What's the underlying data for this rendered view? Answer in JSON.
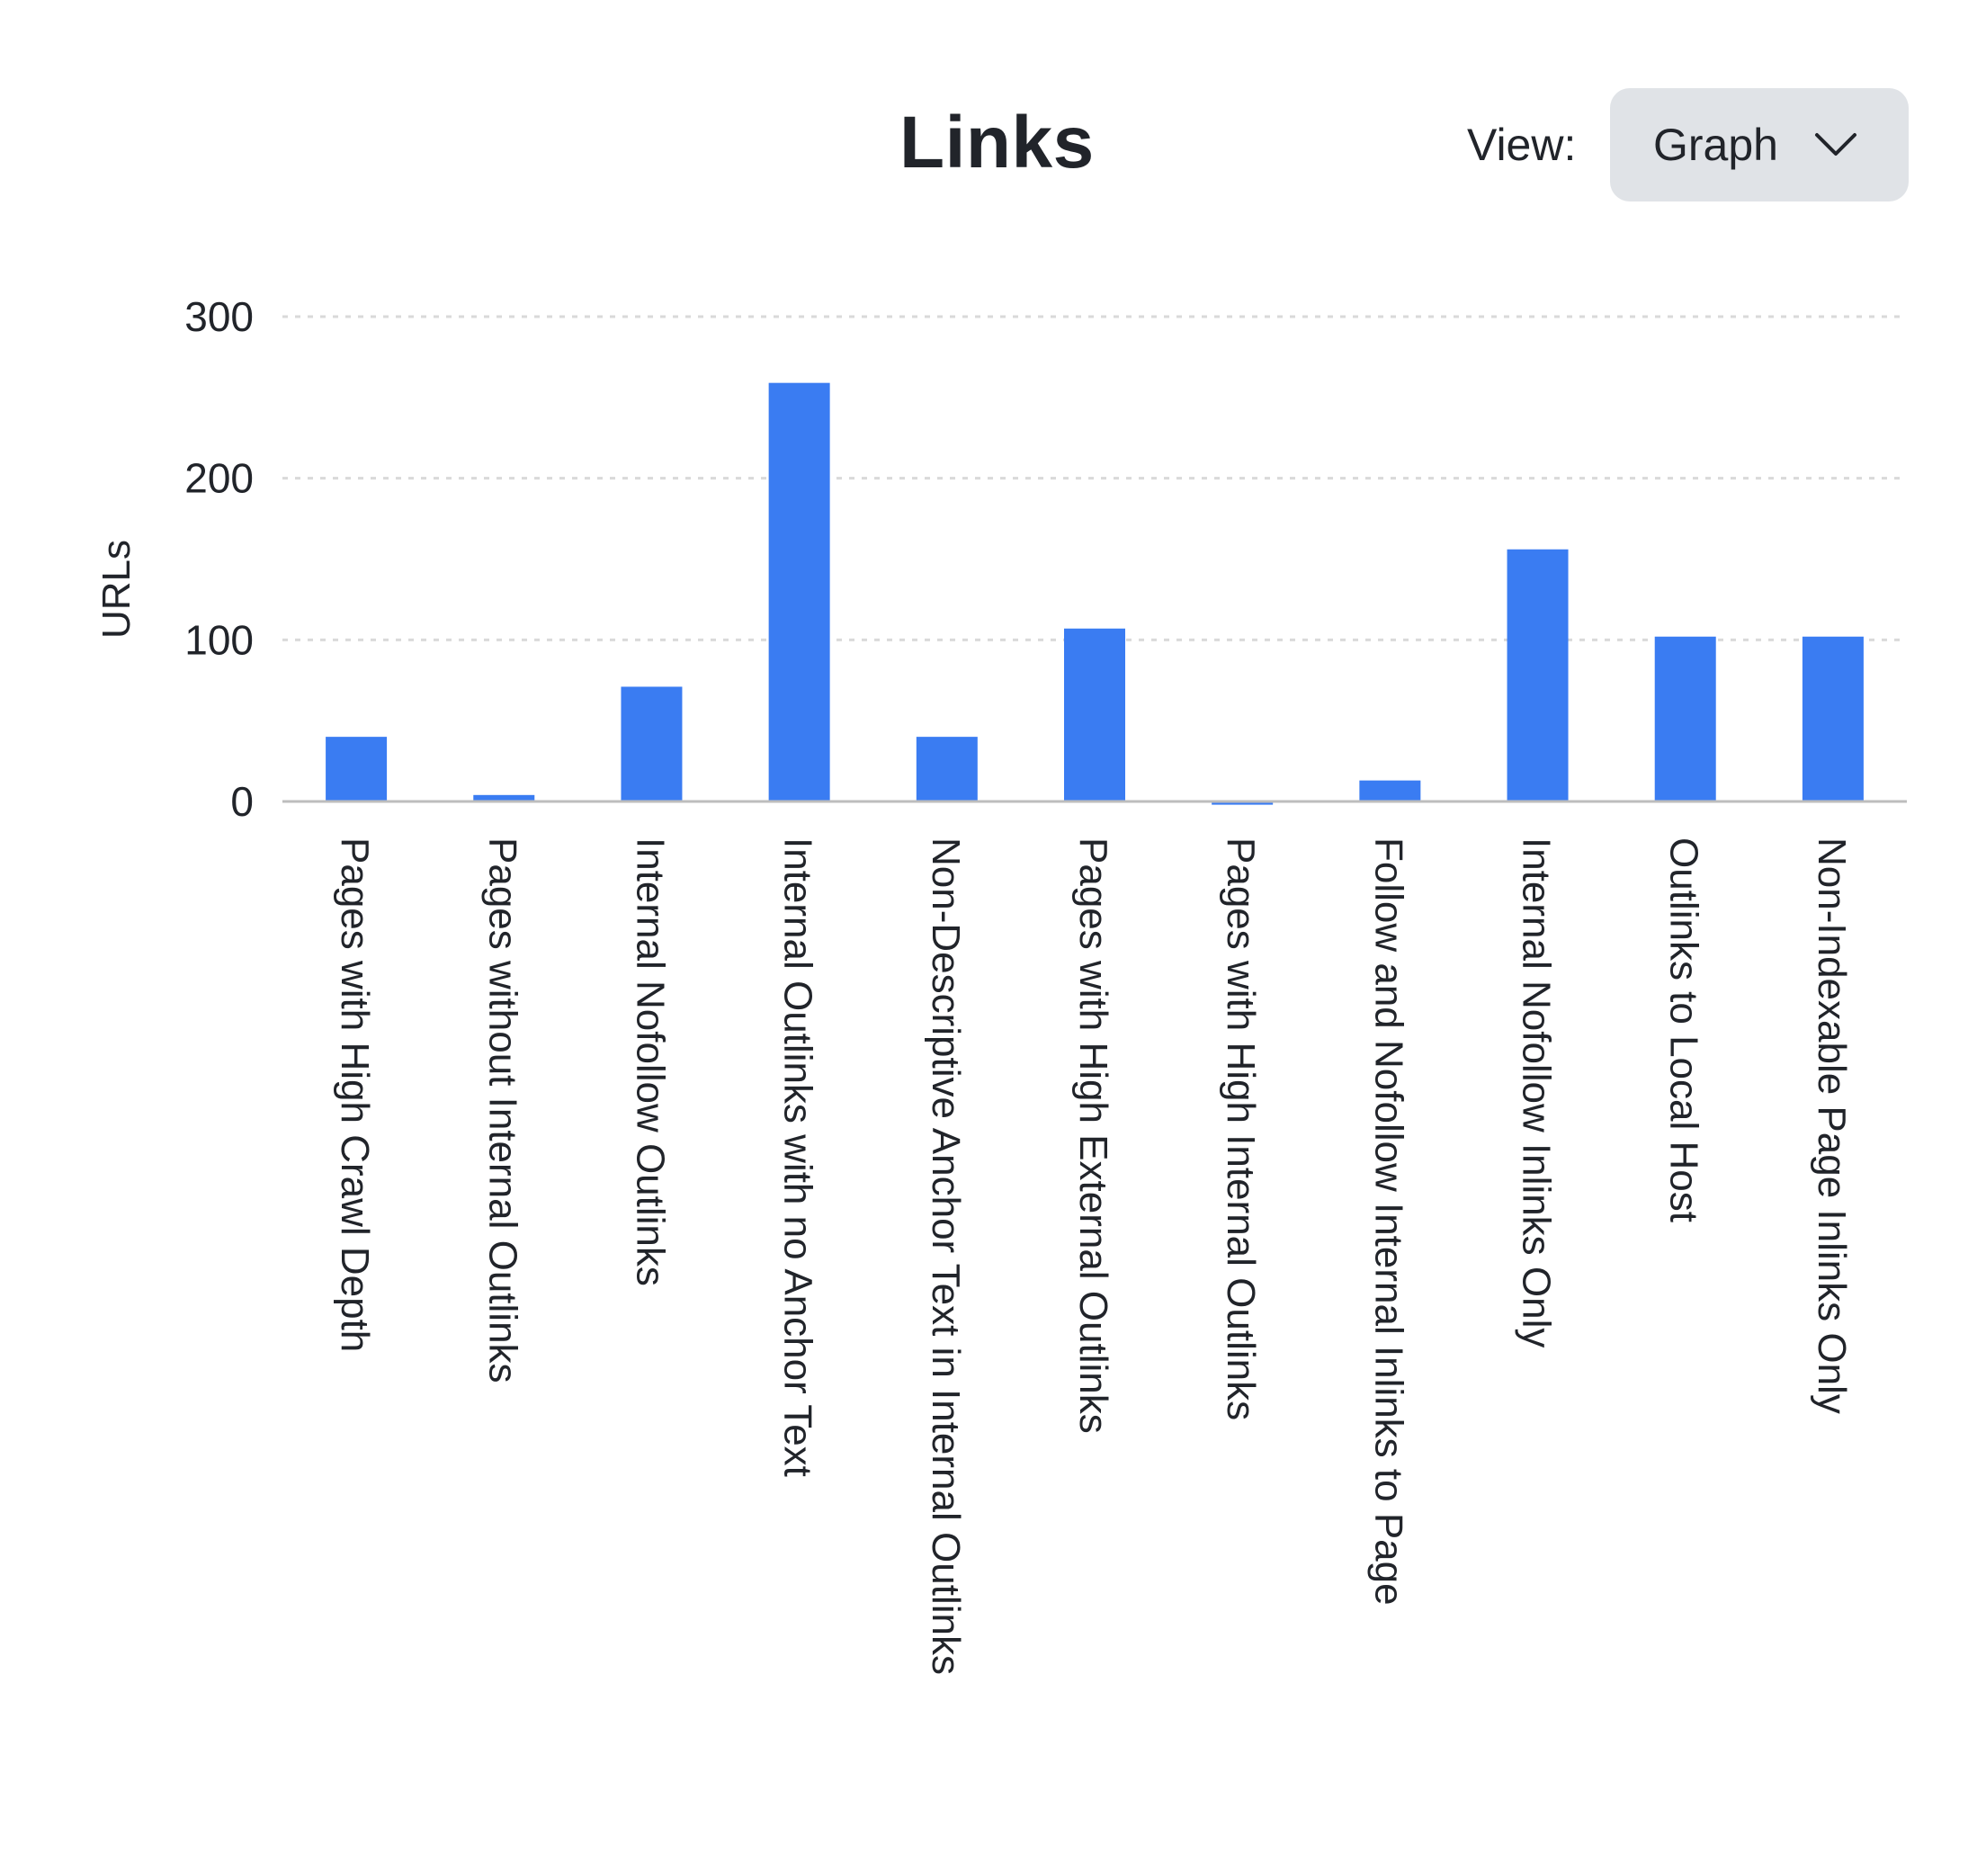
{
  "header": {
    "title": "Links",
    "view_label": "View:",
    "view_value": "Graph",
    "dropdown_icon": "chevron-down-icon"
  },
  "colors": {
    "bar": "#3a7cf2",
    "grid": "#d9d9d9",
    "axis": "#bdbdbd",
    "text": "#21242a"
  },
  "chart_data": {
    "type": "bar",
    "title": "Links",
    "ylabel": "URLs",
    "xlabel": "",
    "ylim": [
      0,
      300
    ],
    "yticks": [
      0,
      100,
      200,
      300
    ],
    "grid": true,
    "categories": [
      "Pages with High Crawl Depth",
      "Pages without Internal Outlinks",
      "Internal Nofollow Outlinks",
      "Internal  Outlinks with no Anchor Text",
      "Non-Descriptive Anchor Text in Internal Outlinks",
      "Pages with High External Outlinks",
      "Pages with High Internal Outlinks",
      "Follow and Nofollow Internal Inlinks to Page",
      "Internal Nofollow  Inlinks Only",
      "Outlinks to Local Host",
      "Non-Indexable Page Inlinks Only"
    ],
    "values": [
      40,
      4,
      71,
      259,
      40,
      107,
      -2,
      13,
      156,
      102,
      102
    ]
  }
}
